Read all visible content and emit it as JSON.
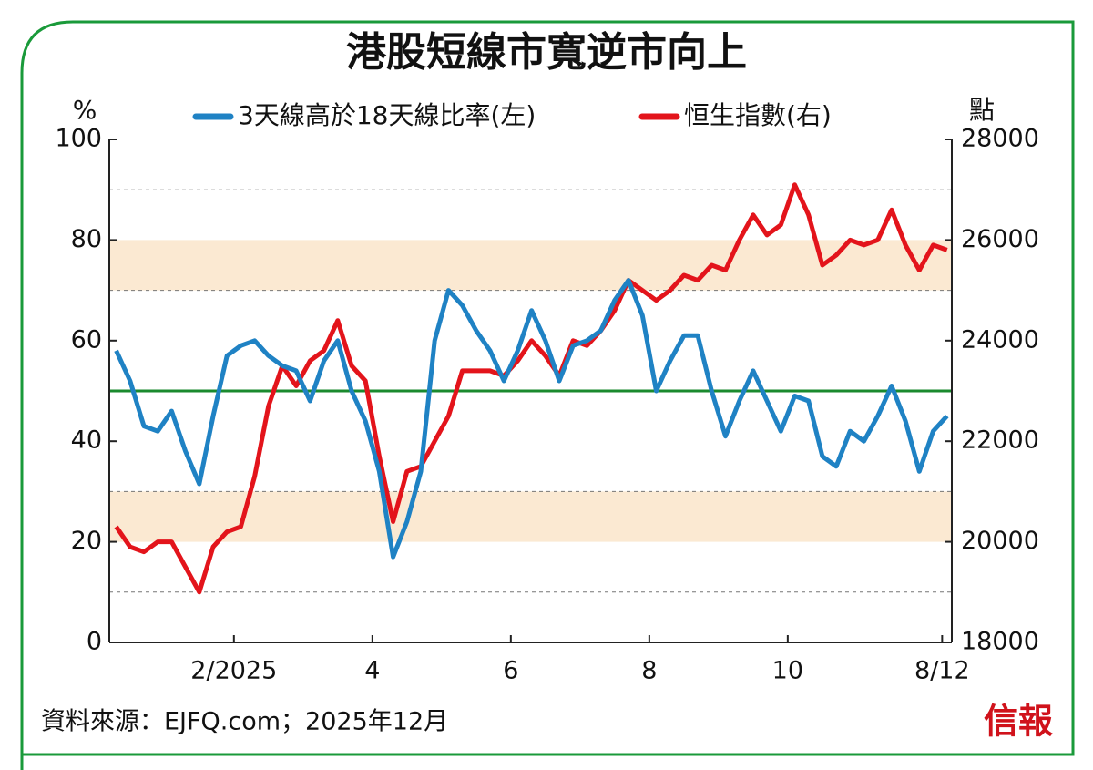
{
  "chart_data": {
    "type": "line",
    "title": "港股短線市寬逆市向上",
    "y_unit": "%",
    "y2_unit": "點",
    "source": "資料來源：EJFQ.com；2025年12月",
    "logo": "信報",
    "x": [
      0.3,
      0.5,
      0.7,
      0.9,
      1.1,
      1.3,
      1.5,
      1.7,
      1.9,
      2.1,
      2.3,
      2.5,
      2.7,
      2.9,
      3.1,
      3.3,
      3.5,
      3.7,
      3.9,
      4.1,
      4.3,
      4.5,
      4.7,
      4.9,
      5.1,
      5.3,
      5.5,
      5.7,
      5.9,
      6.1,
      6.3,
      6.5,
      6.7,
      6.9,
      7.1,
      7.3,
      7.5,
      7.7,
      7.9,
      8.1,
      8.3,
      8.5,
      8.7,
      8.9,
      9.1,
      9.3,
      9.5,
      9.7,
      9.9,
      10.1,
      10.3,
      10.5,
      10.7,
      10.9,
      11.1,
      11.3,
      11.5,
      11.7,
      11.9,
      12.1,
      12.3
    ],
    "xlim": [
      0.2,
      12.37
    ],
    "xticks": [
      {
        "value": 2,
        "label": "2/2025"
      },
      4,
      6,
      8,
      10,
      {
        "value": 12.23,
        "label": "8/12"
      }
    ],
    "ylim": [
      0,
      100
    ],
    "yticks": [
      0,
      20,
      40,
      60,
      80,
      100
    ],
    "y2lim": [
      18000,
      28000
    ],
    "y2ticks": [
      18000,
      20000,
      22000,
      24000,
      26000,
      28000
    ],
    "bands": [
      [
        20,
        30
      ],
      [
        70,
        80
      ]
    ],
    "band_color": "#fbe9d2",
    "dashed_lines": [
      10,
      30,
      70,
      90
    ],
    "reference_line": 50,
    "reference_color": "#1a8a2e",
    "series": [
      {
        "name": "3天線高於18天線比率(左)",
        "color": "#1f82c4",
        "axis": "y",
        "values": [
          58,
          52,
          43,
          42,
          46,
          38,
          31.5,
          45,
          57,
          59,
          60,
          57,
          55,
          54,
          48,
          56,
          60,
          50,
          44,
          34,
          17,
          24,
          34,
          60,
          70,
          67,
          62,
          58,
          52,
          58,
          66,
          60,
          52,
          59,
          60,
          62,
          68,
          72,
          65,
          50,
          56,
          61,
          61,
          50,
          41,
          48,
          54,
          48,
          42,
          49,
          48,
          37,
          35,
          42,
          40,
          45,
          51,
          44,
          34,
          42,
          45
        ]
      },
      {
        "name": "恒生指數(右)",
        "color": "#e3141b",
        "axis": "y2",
        "values": [
          20300,
          19900,
          19800,
          20000,
          20000,
          19500,
          19000,
          19900,
          20200,
          20300,
          21300,
          22700,
          23500,
          23100,
          23600,
          23800,
          24400,
          23500,
          23200,
          21700,
          20400,
          21400,
          21500,
          22000,
          22500,
          23400,
          23400,
          23400,
          23300,
          23600,
          24000,
          23700,
          23300,
          24000,
          23900,
          24200,
          24600,
          25200,
          25000,
          24800,
          25000,
          25300,
          25200,
          25500,
          25400,
          26000,
          26500,
          26100,
          26300,
          27100,
          26500,
          25500,
          25700,
          26000,
          25900,
          26000,
          26600,
          25900,
          25400,
          25900,
          25800
        ]
      }
    ]
  }
}
